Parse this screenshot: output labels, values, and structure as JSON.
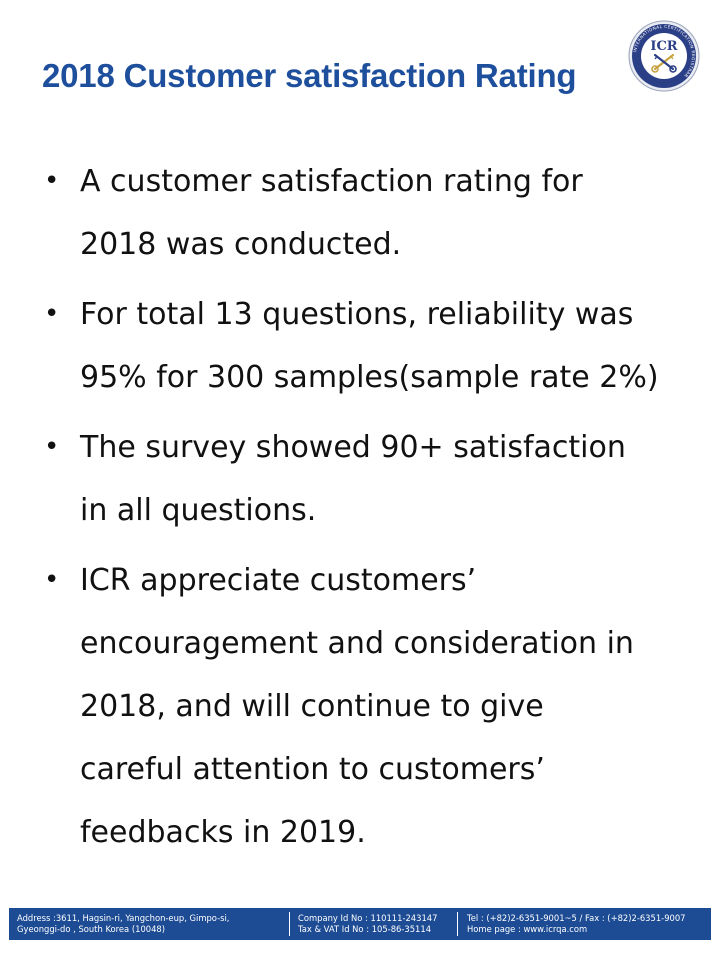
{
  "title": "2018 Customer satisfaction Rating",
  "logo": {
    "text": "ICR",
    "ring_text": "INTERNATIONAL CERTIFICATION REGISTRAR",
    "colors": {
      "outer": "#2b3f87",
      "inner": "#ffffff",
      "accent": "#c8a341"
    }
  },
  "bullets": [
    {
      "lines": [
        "A customer satisfaction rating for",
        "2018 was conducted."
      ]
    },
    {
      "lines": [
        "For total 13 questions, reliability was",
        "95% for 300 samples(sample rate 2%)"
      ]
    },
    {
      "lines": [
        "The survey showed 90+ satisfaction",
        "in all questions."
      ]
    },
    {
      "lines": [
        "ICR appreciate customers’",
        "encouragement and consideration in",
        "2018, and will continue to give",
        "careful attention to customers’",
        "feedbacks in 2019."
      ]
    }
  ],
  "footer": {
    "address": [
      "Address :3611, Hagsin-ri, Yangchon-eup, Gimpo-si,",
      "Gyeonggi-do , South Korea (10048)"
    ],
    "company": [
      "Company Id No : 110111-243147",
      "Tax & VAT Id No : 105-86-35114"
    ],
    "contact": [
      "Tel : (+82)2-6351-9001~5 / Fax : (+82)2-6351-9007",
      "Home page : www.icrqa.com"
    ],
    "background_color": "#1d4c95"
  }
}
